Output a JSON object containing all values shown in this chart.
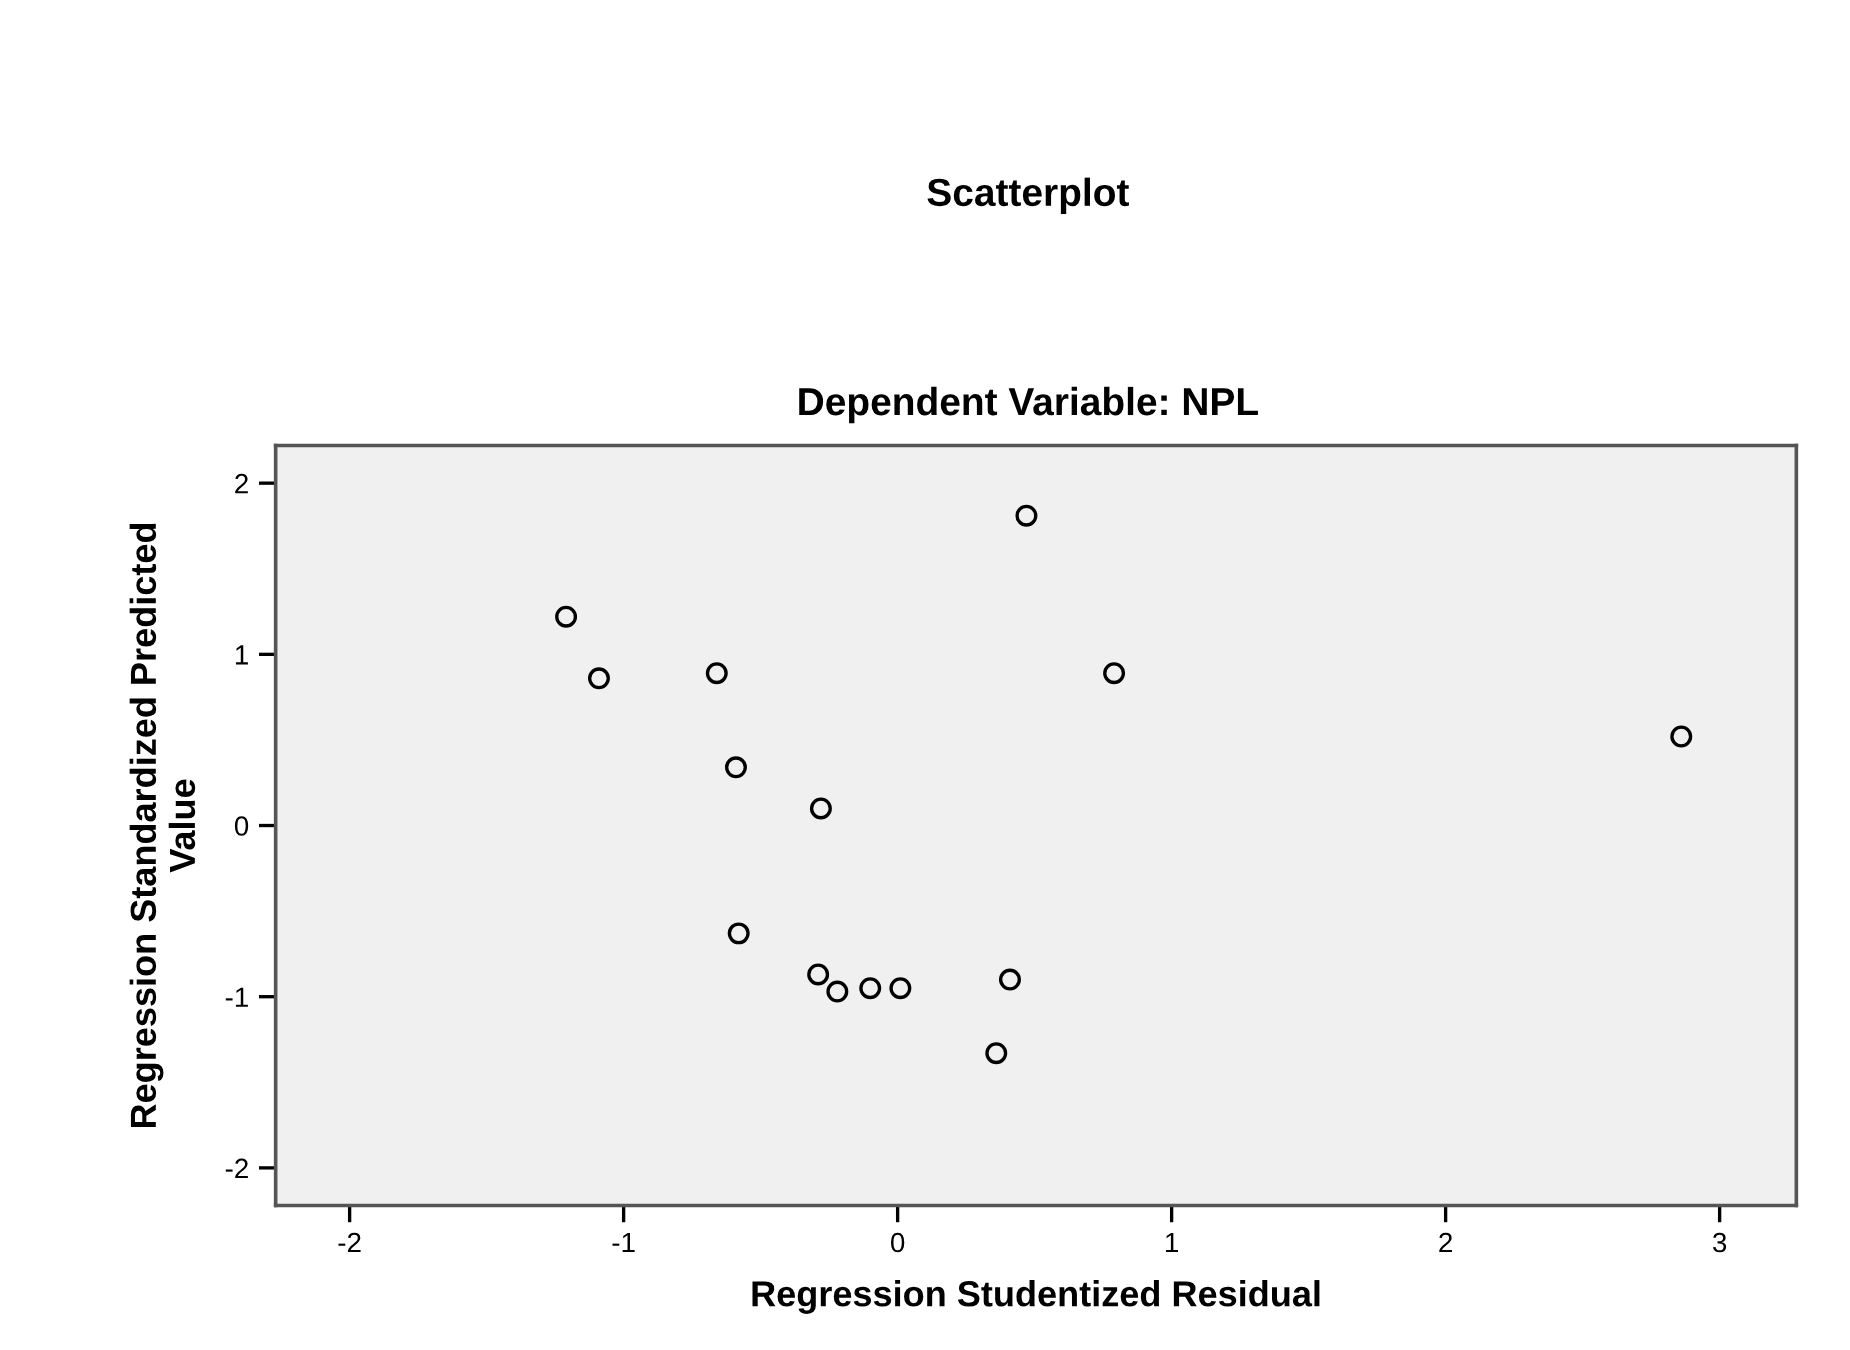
{
  "chart_data": {
    "type": "scatter",
    "title": "Scatterplot",
    "subtitle": "Dependent Variable: NPL",
    "xlabel": "Regression Studentized Residual",
    "ylabel": "Regression Standardized Predicted\nValue",
    "x": [
      -1.21,
      -1.09,
      -0.66,
      -0.59,
      -0.28,
      -0.58,
      -0.29,
      -0.22,
      -0.1,
      0.01,
      0.47,
      0.41,
      0.36,
      0.79,
      2.86
    ],
    "series": [
      {
        "color": "#000000",
        "values": [
          1.22,
          0.86,
          0.89,
          0.34,
          0.1,
          -0.63,
          -0.87,
          -0.97,
          -0.95,
          -0.95,
          1.81,
          -0.9,
          -1.33,
          0.89,
          0.52
        ]
      }
    ],
    "xlim": [
      -2.27,
      3.28
    ],
    "xticks": [
      -2,
      -1,
      0,
      1,
      2,
      3
    ],
    "ylim": [
      -2.22,
      2.22
    ],
    "yticks": [
      -2,
      -1,
      0,
      1,
      2
    ],
    "grid": false,
    "legend": false,
    "marker": "circle"
  }
}
